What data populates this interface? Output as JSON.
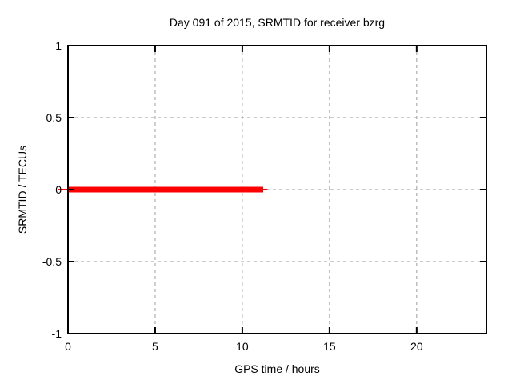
{
  "chart_data": {
    "type": "line",
    "title": "Day 091 of 2015, SRMTID for receiver bzrg",
    "xlabel": "GPS time / hours",
    "ylabel": "SRMTID / TECUs",
    "xlim": [
      0,
      24
    ],
    "ylim": [
      -1,
      1
    ],
    "x_ticks": [
      0,
      5,
      10,
      15,
      20
    ],
    "y_ticks": [
      -1,
      -0.5,
      0,
      0.5,
      1
    ],
    "grid": true,
    "legend": "none",
    "series": [
      {
        "name": "srmtid-thin-line",
        "color": "#ff0000",
        "line_width": 2,
        "points": [
          [
            -0.6,
            0
          ],
          [
            11.45,
            0
          ]
        ]
      },
      {
        "name": "srmtid-thick-line",
        "color": "#ff0000",
        "line_width": 7,
        "points": [
          [
            0,
            0
          ],
          [
            11.2,
            0
          ]
        ]
      }
    ],
    "colors": {
      "line": "#ff0000",
      "grid": "#9e9e9e",
      "border": "#000000",
      "text": "#000000",
      "background": "#ffffff"
    }
  }
}
